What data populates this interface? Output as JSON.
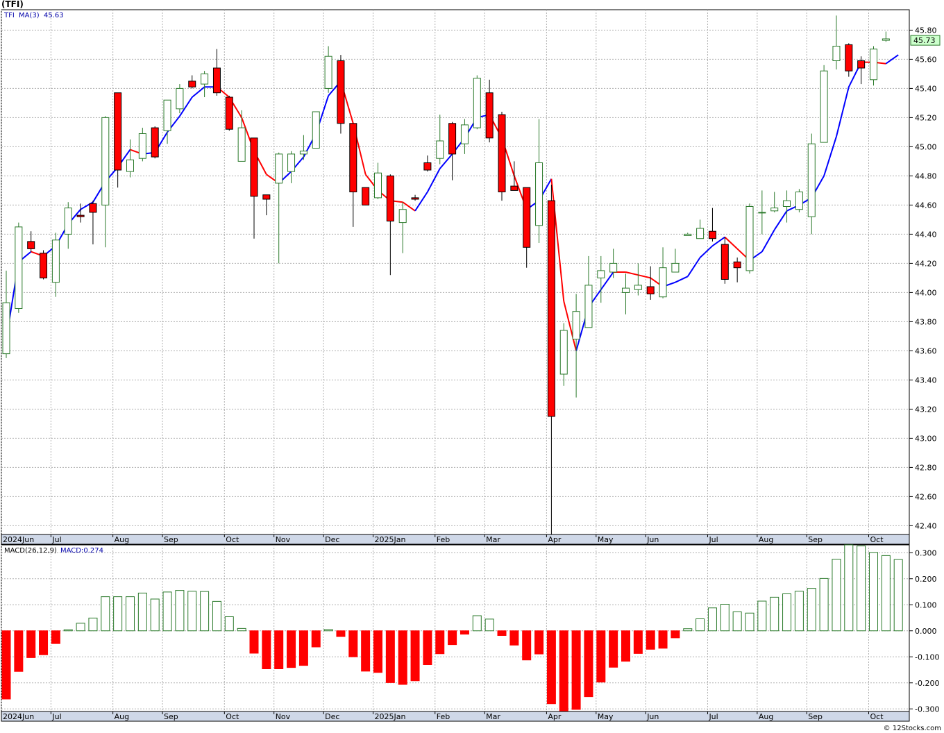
{
  "title": "(TFI)",
  "credit": "© 12Stocks.com",
  "colors": {
    "up_candle": "#2b7a2b",
    "down_candle": "#ff0000",
    "ma_up": "#0000ff",
    "ma_down": "#ff0000",
    "grid": "#b0b0b0",
    "axis_band": "#cfd8e8",
    "last_price_bg": "#ccffcc",
    "macd_pos": "#2b7a2b",
    "macd_neg": "#ff0000"
  },
  "chart_data": [
    {
      "type": "candlestick",
      "symbol": "TFI",
      "legend": {
        "symbol": "TFI",
        "ma_label": "MA(3)",
        "ma_value": "45.63"
      },
      "last_price_label": "45.73",
      "ylim": [
        42.34,
        45.94
      ],
      "y_ticks": [
        "45.80",
        "45.60",
        "45.40",
        "45.20",
        "45.00",
        "44.80",
        "44.60",
        "44.40",
        "44.20",
        "44.00",
        "43.80",
        "43.60",
        "43.40",
        "43.20",
        "43.00",
        "42.80",
        "42.60",
        "42.40"
      ],
      "x_labels": [
        {
          "label": "2024Jun",
          "i": 0
        },
        {
          "label": "Jul",
          "i": 4
        },
        {
          "label": "Aug",
          "i": 9
        },
        {
          "label": "Sep",
          "i": 13
        },
        {
          "label": "Oct",
          "i": 18
        },
        {
          "label": "Nov",
          "i": 22
        },
        {
          "label": "Dec",
          "i": 26
        },
        {
          "label": "2025Jan",
          "i": 30
        },
        {
          "label": "Feb",
          "i": 35
        },
        {
          "label": "Mar",
          "i": 39
        },
        {
          "label": "Apr",
          "i": 44
        },
        {
          "label": "May",
          "i": 48
        },
        {
          "label": "Jun",
          "i": 52
        },
        {
          "label": "Jul",
          "i": 57
        },
        {
          "label": "Aug",
          "i": 61
        },
        {
          "label": "Sep",
          "i": 65
        },
        {
          "label": "Oct",
          "i": 70
        }
      ],
      "candles": [
        {
          "o": 43.58,
          "h": 44.15,
          "l": 43.55,
          "c": 43.93
        },
        {
          "o": 43.89,
          "h": 44.48,
          "l": 43.86,
          "c": 44.45
        },
        {
          "o": 44.35,
          "h": 44.42,
          "l": 44.28,
          "c": 44.3
        },
        {
          "o": 44.27,
          "h": 44.29,
          "l": 44.09,
          "c": 44.1
        },
        {
          "o": 44.07,
          "h": 44.41,
          "l": 43.97,
          "c": 44.36
        },
        {
          "o": 44.4,
          "h": 44.62,
          "l": 44.3,
          "c": 44.58
        },
        {
          "o": 44.53,
          "h": 44.61,
          "l": 44.48,
          "c": 44.52
        },
        {
          "o": 44.61,
          "h": 44.63,
          "l": 44.33,
          "c": 44.55
        },
        {
          "o": 44.6,
          "h": 45.21,
          "l": 44.31,
          "c": 45.2
        },
        {
          "o": 45.37,
          "h": 45.37,
          "l": 44.72,
          "c": 44.84
        },
        {
          "o": 44.83,
          "h": 45.05,
          "l": 44.79,
          "c": 44.91
        },
        {
          "o": 44.92,
          "h": 45.13,
          "l": 44.9,
          "c": 45.09
        },
        {
          "o": 45.13,
          "h": 45.14,
          "l": 44.92,
          "c": 44.93
        },
        {
          "o": 45.11,
          "h": 45.32,
          "l": 45.02,
          "c": 45.32
        },
        {
          "o": 45.26,
          "h": 45.43,
          "l": 45.23,
          "c": 45.4
        },
        {
          "o": 45.45,
          "h": 45.49,
          "l": 45.4,
          "c": 45.41
        },
        {
          "o": 45.43,
          "h": 45.52,
          "l": 45.34,
          "c": 45.5
        },
        {
          "o": 45.54,
          "h": 45.67,
          "l": 45.35,
          "c": 45.37
        },
        {
          "o": 45.34,
          "h": 45.35,
          "l": 45.11,
          "c": 45.12
        },
        {
          "o": 44.9,
          "h": 45.25,
          "l": 44.9,
          "c": 45.13
        },
        {
          "o": 45.06,
          "h": 45.06,
          "l": 44.37,
          "c": 44.66
        },
        {
          "o": 44.67,
          "h": 44.67,
          "l": 44.53,
          "c": 44.64
        },
        {
          "o": 44.75,
          "h": 44.96,
          "l": 44.2,
          "c": 44.95
        },
        {
          "o": 44.83,
          "h": 44.97,
          "l": 44.75,
          "c": 44.95
        },
        {
          "o": 44.95,
          "h": 45.08,
          "l": 44.91,
          "c": 44.97
        },
        {
          "o": 44.99,
          "h": 45.24,
          "l": 44.99,
          "c": 45.24
        },
        {
          "o": 45.4,
          "h": 45.69,
          "l": 45.37,
          "c": 45.62
        },
        {
          "o": 45.59,
          "h": 45.63,
          "l": 45.09,
          "c": 45.16
        },
        {
          "o": 45.16,
          "h": 45.16,
          "l": 44.45,
          "c": 44.69
        },
        {
          "o": 44.72,
          "h": 44.72,
          "l": 44.61,
          "c": 44.6
        },
        {
          "o": 44.65,
          "h": 44.89,
          "l": 44.64,
          "c": 44.82
        },
        {
          "o": 44.8,
          "h": 44.81,
          "l": 44.12,
          "c": 44.49
        },
        {
          "o": 44.48,
          "h": 44.62,
          "l": 44.27,
          "c": 44.57
        },
        {
          "o": 44.65,
          "h": 44.67,
          "l": 44.63,
          "c": 44.64
        },
        {
          "o": 44.89,
          "h": 44.94,
          "l": 44.83,
          "c": 44.84
        },
        {
          "o": 44.92,
          "h": 45.22,
          "l": 44.88,
          "c": 45.04
        },
        {
          "o": 45.16,
          "h": 45.17,
          "l": 44.77,
          "c": 44.95
        },
        {
          "o": 45.02,
          "h": 45.19,
          "l": 44.95,
          "c": 45.15
        },
        {
          "o": 45.13,
          "h": 45.49,
          "l": 45.12,
          "c": 45.47
        },
        {
          "o": 45.37,
          "h": 45.46,
          "l": 45.03,
          "c": 45.06
        },
        {
          "o": 45.22,
          "h": 45.24,
          "l": 44.63,
          "c": 44.69
        },
        {
          "o": 44.73,
          "h": 44.9,
          "l": 44.7,
          "c": 44.7
        },
        {
          "o": 44.72,
          "h": 44.72,
          "l": 44.17,
          "c": 44.31
        },
        {
          "o": 44.46,
          "h": 45.19,
          "l": 44.34,
          "c": 44.89
        },
        {
          "o": 44.63,
          "h": 44.74,
          "l": 42.34,
          "c": 43.15
        },
        {
          "o": 43.44,
          "h": 43.79,
          "l": 43.36,
          "c": 43.74
        },
        {
          "o": 43.68,
          "h": 43.99,
          "l": 43.28,
          "c": 43.87
        },
        {
          "o": 43.76,
          "h": 44.25,
          "l": 43.76,
          "c": 44.05
        },
        {
          "o": 44.1,
          "h": 44.25,
          "l": 43.93,
          "c": 44.15
        },
        {
          "o": 44.14,
          "h": 44.3,
          "l": 44.1,
          "c": 44.2
        },
        {
          "o": 44.0,
          "h": 44.13,
          "l": 43.85,
          "c": 44.03
        },
        {
          "o": 44.02,
          "h": 44.2,
          "l": 43.98,
          "c": 44.05
        },
        {
          "o": 44.04,
          "h": 44.18,
          "l": 43.95,
          "c": 43.99
        },
        {
          "o": 43.97,
          "h": 44.31,
          "l": 43.96,
          "c": 44.17
        },
        {
          "o": 44.14,
          "h": 44.3,
          "l": 44.14,
          "c": 44.2
        },
        {
          "o": 44.39,
          "h": 44.41,
          "l": 44.39,
          "c": 44.4
        },
        {
          "o": 44.37,
          "h": 44.5,
          "l": 44.37,
          "c": 44.44
        },
        {
          "o": 44.42,
          "h": 44.58,
          "l": 44.35,
          "c": 44.37
        },
        {
          "o": 44.33,
          "h": 44.38,
          "l": 44.06,
          "c": 44.09
        },
        {
          "o": 44.21,
          "h": 44.24,
          "l": 44.07,
          "c": 44.17
        },
        {
          "o": 44.15,
          "h": 44.61,
          "l": 44.13,
          "c": 44.59
        },
        {
          "o": 44.55,
          "h": 44.7,
          "l": 44.4,
          "c": 44.55
        },
        {
          "o": 44.56,
          "h": 44.69,
          "l": 44.55,
          "c": 44.58
        },
        {
          "o": 44.59,
          "h": 44.7,
          "l": 44.48,
          "c": 44.63
        },
        {
          "o": 44.57,
          "h": 44.71,
          "l": 44.55,
          "c": 44.69
        },
        {
          "o": 44.52,
          "h": 45.09,
          "l": 44.4,
          "c": 45.02
        },
        {
          "o": 45.03,
          "h": 45.56,
          "l": 45.03,
          "c": 45.52
        },
        {
          "o": 45.59,
          "h": 45.9,
          "l": 45.53,
          "c": 45.69
        },
        {
          "o": 45.7,
          "h": 45.71,
          "l": 45.48,
          "c": 45.52
        },
        {
          "o": 45.59,
          "h": 45.62,
          "l": 45.43,
          "c": 45.54
        },
        {
          "o": 45.46,
          "h": 45.69,
          "l": 45.42,
          "c": 45.67
        },
        {
          "o": 45.73,
          "h": 45.79,
          "l": 45.72,
          "c": 45.74
        }
      ],
      "ma3": [
        43.68,
        44.21,
        44.28,
        44.25,
        44.32,
        44.47,
        44.57,
        44.62,
        44.76,
        44.86,
        44.98,
        44.95,
        44.96,
        45.1,
        45.21,
        45.34,
        45.41,
        45.41,
        45.34,
        45.2,
        44.97,
        44.81,
        44.75,
        44.83,
        44.93,
        45.09,
        45.35,
        45.45,
        45.16,
        44.81,
        44.7,
        44.63,
        44.62,
        44.56,
        44.69,
        44.85,
        44.95,
        45.06,
        45.2,
        45.22,
        45.06,
        44.8,
        44.57,
        44.63,
        44.78,
        43.94,
        43.6,
        43.9,
        44.02,
        44.14,
        44.14,
        44.12,
        44.1,
        44.04,
        44.07,
        44.11,
        44.24,
        44.32,
        44.38,
        44.3,
        44.22,
        44.28,
        44.43,
        44.56,
        44.6,
        44.65,
        44.8,
        45.07,
        45.41,
        45.58,
        45.58,
        45.57,
        45.63
      ],
      "ma3_color": [
        "u",
        "u",
        "u",
        "d",
        "u",
        "u",
        "u",
        "u",
        "u",
        "u",
        "u",
        "d",
        "u",
        "u",
        "u",
        "u",
        "u",
        "u",
        "d",
        "d",
        "d",
        "d",
        "d",
        "u",
        "u",
        "u",
        "u",
        "u",
        "d",
        "d",
        "d",
        "d",
        "d",
        "d",
        "u",
        "u",
        "u",
        "u",
        "u",
        "u",
        "d",
        "d",
        "d",
        "u",
        "u",
        "d",
        "d",
        "u",
        "u",
        "u",
        "d",
        "d",
        "d",
        "d",
        "u",
        "u",
        "u",
        "u",
        "u",
        "d",
        "d",
        "u",
        "u",
        "u",
        "u",
        "u",
        "u",
        "u",
        "u",
        "u",
        "d",
        "d",
        "u"
      ]
    },
    {
      "type": "bar",
      "name": "MACD",
      "legend": {
        "label": "MACD(26,12,9)",
        "value_label": "MACD:0.274"
      },
      "ylim": [
        -0.31,
        0.33
      ],
      "y_ticks": [
        "0.300",
        "0.200",
        "0.100",
        "0.000",
        "-0.100",
        "-0.200",
        "-0.300"
      ],
      "values": [
        -0.262,
        -0.156,
        -0.103,
        -0.092,
        -0.049,
        0.004,
        0.029,
        0.049,
        0.131,
        0.131,
        0.131,
        0.145,
        0.122,
        0.149,
        0.155,
        0.152,
        0.151,
        0.113,
        0.054,
        0.009,
        -0.086,
        -0.146,
        -0.146,
        -0.141,
        -0.133,
        -0.062,
        0.005,
        -0.022,
        -0.1,
        -0.155,
        -0.16,
        -0.199,
        -0.206,
        -0.192,
        -0.13,
        -0.088,
        -0.053,
        -0.013,
        0.058,
        0.045,
        -0.018,
        -0.055,
        -0.112,
        -0.089,
        -0.28,
        -0.31,
        -0.302,
        -0.253,
        -0.197,
        -0.14,
        -0.117,
        -0.087,
        -0.071,
        -0.067,
        -0.027,
        0.008,
        0.046,
        0.088,
        0.102,
        0.073,
        0.068,
        0.114,
        0.129,
        0.142,
        0.152,
        0.163,
        0.201,
        0.275,
        0.33,
        0.326,
        0.301,
        0.289,
        0.274
      ]
    }
  ]
}
